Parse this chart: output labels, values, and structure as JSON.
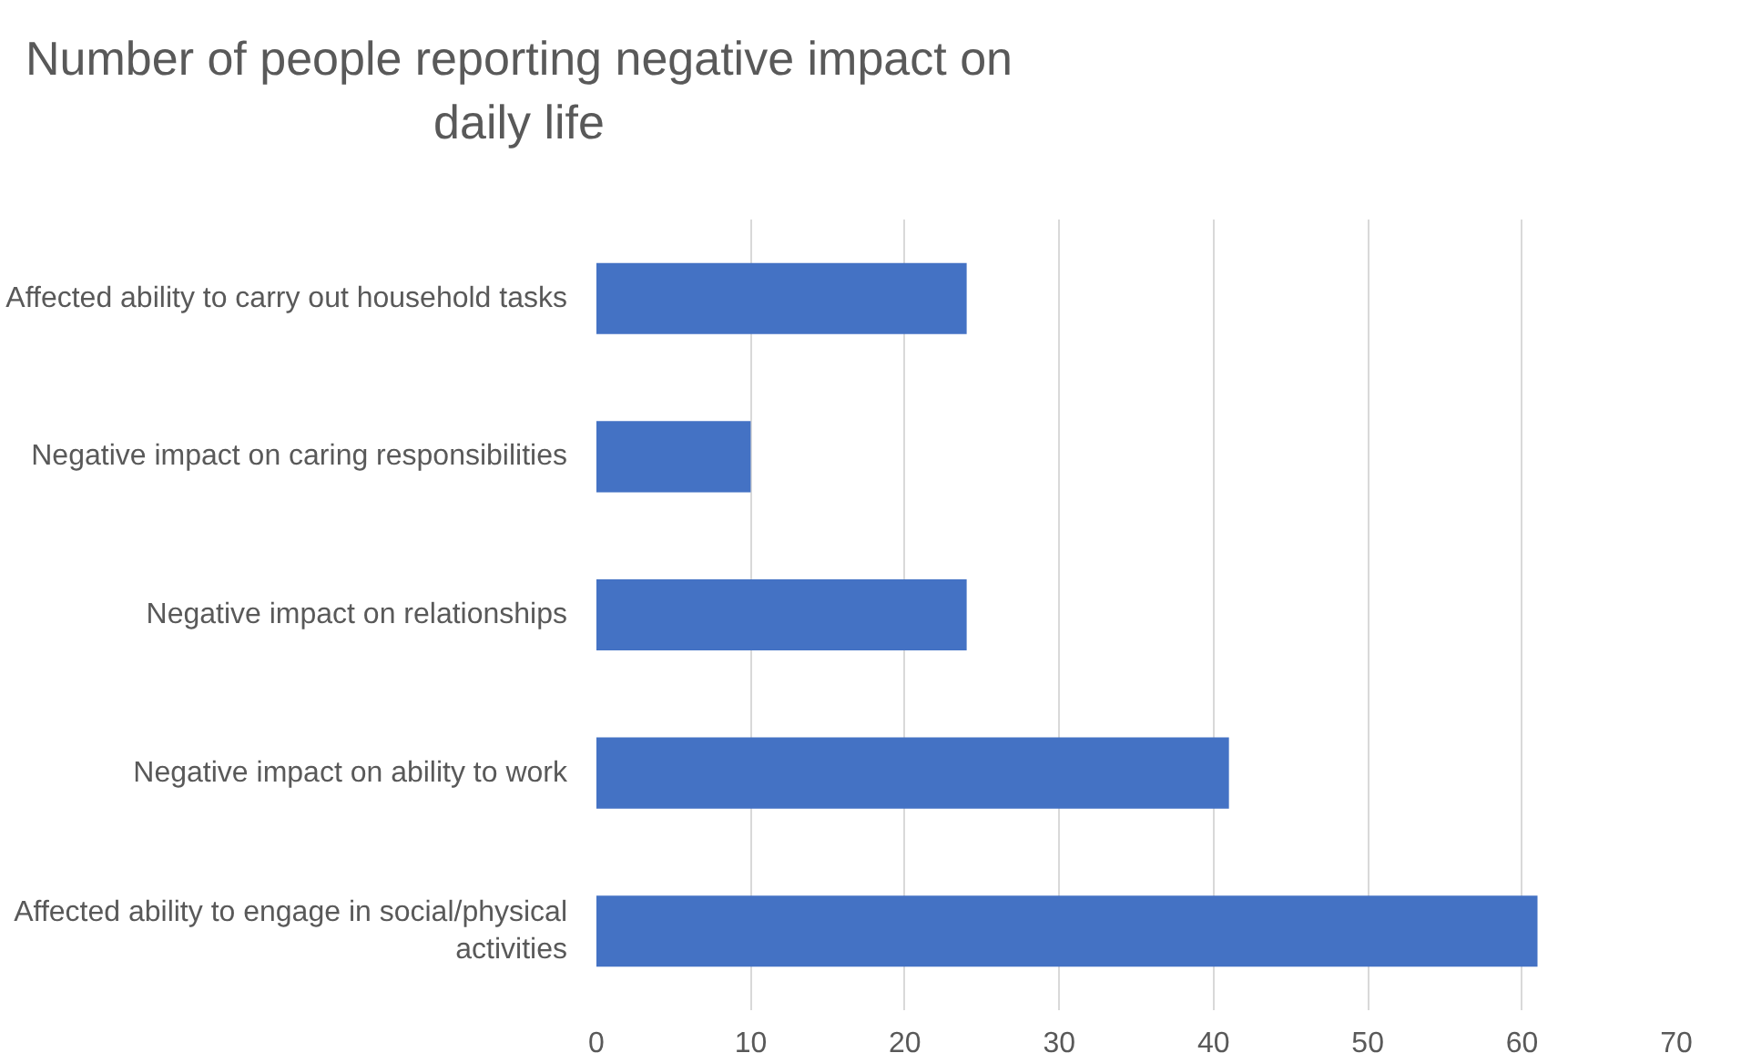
{
  "chart_data": {
    "type": "bar",
    "orientation": "horizontal",
    "title": "Number of people reporting negative impact on daily life",
    "categories": [
      "Affected ability to carry out household tasks",
      "Negative impact on caring responsibilities",
      "Negative impact on relationships",
      "Negative impact on ability to work",
      "Affected ability to engage in social/physical activities"
    ],
    "values": [
      24,
      10,
      24,
      41,
      61
    ],
    "color": "#4472c4",
    "xlim": [
      0,
      70
    ],
    "xticks": [
      0,
      10,
      20,
      30,
      40,
      50,
      60,
      70
    ],
    "grid": "x"
  }
}
